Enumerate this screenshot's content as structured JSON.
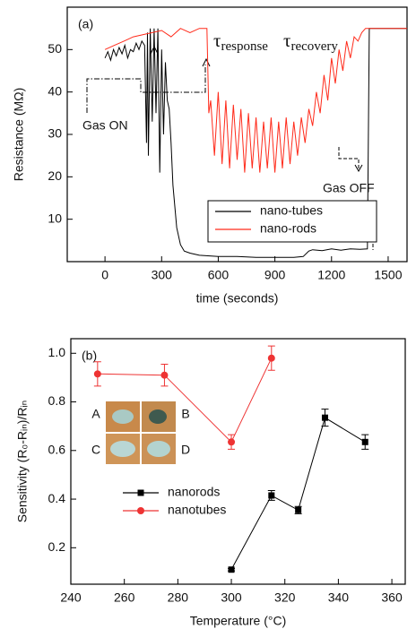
{
  "chart_data": [
    {
      "type": "line",
      "label": "(a)",
      "x_label": "time (seconds)",
      "y_label": "Resistance (MΩ)",
      "xlim": [
        -200,
        1600
      ],
      "ylim": [
        0,
        60
      ],
      "xticks": [
        0,
        300,
        600,
        900,
        1200,
        1500
      ],
      "yticks": [
        10,
        20,
        30,
        40,
        50
      ],
      "legend": "lower right",
      "annotations": [
        {
          "text": "τ",
          "sub": "response"
        },
        {
          "text": "τ",
          "sub": "recovery"
        },
        {
          "text": "Gas ON"
        },
        {
          "text": "Gas OFF"
        }
      ],
      "series": [
        {
          "name": "nano-tubes",
          "color": "#000000",
          "x": [
            0,
            15,
            30,
            45,
            60,
            75,
            90,
            105,
            120,
            135,
            150,
            165,
            180,
            195,
            210,
            220,
            225,
            230,
            240,
            250,
            260,
            270,
            280,
            290,
            300,
            310,
            320,
            330,
            340,
            350,
            360,
            380,
            400,
            420,
            450,
            500,
            600,
            700,
            800,
            900,
            1000,
            1050,
            1080,
            1100,
            1150,
            1200,
            1250,
            1300,
            1350,
            1390,
            1400,
            1410,
            1500,
            1600
          ],
          "values": [
            48,
            49.5,
            47.5,
            50,
            48.5,
            50.5,
            49,
            51,
            48,
            50,
            49.5,
            51.5,
            50,
            52,
            51,
            28,
            54,
            25,
            55,
            33,
            55,
            35,
            55,
            21,
            50,
            30,
            47,
            38,
            36,
            28,
            18,
            8,
            4,
            2.5,
            2,
            1.5,
            1.2,
            1.2,
            1.0,
            1.0,
            1.0,
            1.2,
            2.5,
            2.8,
            2.6,
            3,
            2.7,
            3,
            2.9,
            3,
            55,
            55,
            55,
            55
          ]
        },
        {
          "name": "nano-rods",
          "color": "#ff2a1a",
          "x": [
            0,
            50,
            100,
            150,
            200,
            250,
            300,
            350,
            400,
            450,
            500,
            540,
            550,
            560,
            580,
            600,
            620,
            640,
            660,
            680,
            700,
            720,
            740,
            760,
            780,
            800,
            820,
            840,
            860,
            880,
            900,
            920,
            940,
            960,
            980,
            1000,
            1020,
            1040,
            1060,
            1080,
            1100,
            1120,
            1140,
            1160,
            1180,
            1200,
            1220,
            1240,
            1260,
            1280,
            1300,
            1320,
            1340,
            1360,
            1380,
            1600
          ],
          "values": [
            50,
            51,
            52,
            53,
            53.5,
            54,
            54.5,
            53,
            55,
            54,
            55,
            55,
            35,
            38,
            25,
            40,
            23,
            38,
            22,
            37,
            24,
            36,
            21,
            35,
            22,
            34,
            21,
            33,
            22,
            34,
            21,
            33,
            22,
            34,
            23,
            33,
            25,
            34,
            28,
            36,
            32,
            40,
            35,
            44,
            38,
            48,
            42,
            50,
            45,
            52,
            48,
            53,
            52,
            54,
            55,
            55
          ]
        }
      ]
    },
    {
      "type": "line",
      "label": "(b)",
      "x_label": "Temperature (°C)",
      "y_label": "Sensitivity (R₀-Rᵢₙ)/Rᵢₙ",
      "xlim": [
        240,
        365
      ],
      "ylim": [
        0.05,
        1.06
      ],
      "xticks": [
        240,
        260,
        280,
        300,
        320,
        340,
        360
      ],
      "yticks": [
        0.2,
        0.4,
        0.6,
        0.8,
        {
          "value": 1.0,
          "label": "1.0"
        }
      ],
      "legend": "center left",
      "inset_labels": [
        "A",
        "B",
        "C",
        "D"
      ],
      "series": [
        {
          "name": "nanorods",
          "color": "#000000",
          "marker": "square",
          "x": [
            300,
            315,
            325,
            335,
            350
          ],
          "values": [
            0.11,
            0.415,
            0.355,
            0.735,
            0.635
          ],
          "errors": [
            0.005,
            0.02,
            0.015,
            0.035,
            0.03
          ]
        },
        {
          "name": "nanotubes",
          "color": "#ee3333",
          "marker": "circle",
          "x": [
            250,
            275,
            300,
            315
          ],
          "values": [
            0.915,
            0.91,
            0.635,
            0.98
          ],
          "errors": [
            0.05,
            0.045,
            0.03,
            0.05
          ]
        }
      ]
    }
  ]
}
